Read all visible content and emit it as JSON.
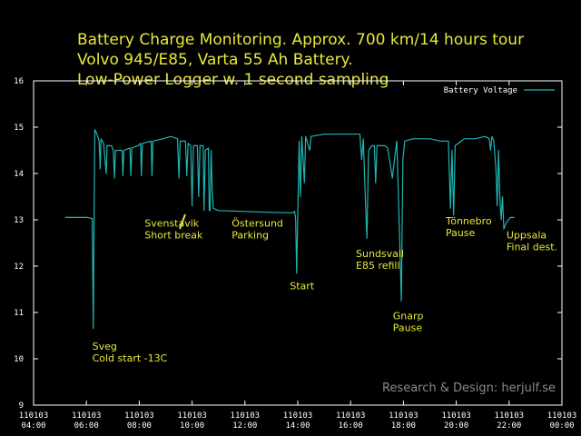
{
  "chart_data": {
    "type": "line",
    "title": [
      "Battery Charge Monitoring. Approx. 700 km/14 hours tour",
      "Volvo 945/E85, Varta 55 Ah Battery.",
      "Low-Power Logger w. 1 second sampling"
    ],
    "xlabel": "",
    "ylabel": "",
    "xlim": [
      4,
      24
    ],
    "ylim": [
      9,
      16
    ],
    "x_ticks": [
      {
        "date": "110103",
        "time": "04:00",
        "hour": 4
      },
      {
        "date": "110103",
        "time": "06:00",
        "hour": 6
      },
      {
        "date": "110103",
        "time": "08:00",
        "hour": 8
      },
      {
        "date": "110103",
        "time": "10:00",
        "hour": 10
      },
      {
        "date": "110103",
        "time": "12:00",
        "hour": 12
      },
      {
        "date": "110103",
        "time": "14:00",
        "hour": 14
      },
      {
        "date": "110103",
        "time": "16:00",
        "hour": 16
      },
      {
        "date": "110103",
        "time": "18:00",
        "hour": 18
      },
      {
        "date": "110103",
        "time": "20:00",
        "hour": 20
      },
      {
        "date": "110103",
        "time": "22:00",
        "hour": 22
      },
      {
        "date": "110103",
        "time": "00:00",
        "hour": 24
      }
    ],
    "y_ticks": [
      "9",
      "10",
      "11",
      "12",
      "13",
      "14",
      "15",
      "16"
    ],
    "grid": false,
    "legend": {
      "position": "top-right",
      "entries": [
        "Battery Voltage"
      ]
    },
    "series": [
      {
        "name": "Battery Voltage",
        "color": "#1fb5b5",
        "points": [
          [
            5.2,
            13.05
          ],
          [
            6.05,
            13.05
          ],
          [
            6.22,
            13.03
          ],
          [
            6.26,
            10.65
          ],
          [
            6.29,
            13.0
          ],
          [
            6.32,
            14.95
          ],
          [
            6.4,
            14.85
          ],
          [
            6.48,
            14.7
          ],
          [
            6.52,
            14.1
          ],
          [
            6.55,
            14.75
          ],
          [
            6.65,
            14.65
          ],
          [
            6.75,
            14.0
          ],
          [
            6.78,
            14.6
          ],
          [
            6.95,
            14.6
          ],
          [
            7.02,
            14.5
          ],
          [
            7.06,
            13.9
          ],
          [
            7.1,
            14.5
          ],
          [
            7.35,
            14.5
          ],
          [
            7.38,
            13.95
          ],
          [
            7.42,
            14.5
          ],
          [
            7.65,
            14.55
          ],
          [
            7.68,
            13.95
          ],
          [
            7.72,
            14.55
          ],
          [
            7.95,
            14.6
          ],
          [
            8.05,
            14.65
          ],
          [
            8.08,
            13.95
          ],
          [
            8.12,
            14.65
          ],
          [
            8.45,
            14.7
          ],
          [
            8.48,
            13.95
          ],
          [
            8.52,
            14.7
          ],
          [
            8.9,
            14.75
          ],
          [
            9.2,
            14.8
          ],
          [
            9.45,
            14.75
          ],
          [
            9.5,
            13.9
          ],
          [
            9.55,
            14.7
          ],
          [
            9.75,
            14.7
          ],
          [
            9.8,
            13.95
          ],
          [
            9.85,
            14.65
          ],
          [
            9.95,
            14.6
          ],
          [
            10.0,
            13.3
          ],
          [
            10.05,
            14.6
          ],
          [
            10.2,
            14.6
          ],
          [
            10.25,
            13.5
          ],
          [
            10.3,
            14.6
          ],
          [
            10.42,
            14.6
          ],
          [
            10.45,
            13.2
          ],
          [
            10.5,
            14.5
          ],
          [
            10.62,
            14.55
          ],
          [
            10.65,
            13.2
          ],
          [
            10.68,
            13.2
          ],
          [
            10.72,
            14.5
          ],
          [
            10.76,
            13.7
          ],
          [
            10.8,
            13.25
          ],
          [
            11.0,
            13.2
          ],
          [
            12.0,
            13.18
          ],
          [
            12.5,
            13.17
          ],
          [
            13.0,
            13.16
          ],
          [
            13.8,
            13.15
          ],
          [
            13.88,
            13.18
          ],
          [
            13.92,
            13.0
          ],
          [
            13.96,
            11.85
          ],
          [
            14.0,
            13.1
          ],
          [
            14.05,
            14.7
          ],
          [
            14.1,
            13.5
          ],
          [
            14.15,
            14.8
          ],
          [
            14.25,
            13.8
          ],
          [
            14.3,
            14.8
          ],
          [
            14.45,
            14.5
          ],
          [
            14.5,
            14.8
          ],
          [
            15.0,
            14.85
          ],
          [
            15.5,
            14.85
          ],
          [
            16.0,
            14.85
          ],
          [
            16.35,
            14.85
          ],
          [
            16.42,
            14.3
          ],
          [
            16.48,
            14.75
          ],
          [
            16.55,
            13.6
          ],
          [
            16.62,
            12.6
          ],
          [
            16.68,
            14.5
          ],
          [
            16.8,
            14.6
          ],
          [
            16.9,
            14.6
          ],
          [
            16.95,
            13.8
          ],
          [
            17.0,
            14.6
          ],
          [
            17.3,
            14.6
          ],
          [
            17.4,
            14.55
          ],
          [
            17.5,
            14.2
          ],
          [
            17.58,
            13.9
          ],
          [
            17.66,
            14.3
          ],
          [
            17.75,
            14.7
          ],
          [
            17.85,
            12.75
          ],
          [
            17.92,
            11.25
          ],
          [
            17.98,
            14.3
          ],
          [
            18.05,
            14.7
          ],
          [
            18.35,
            14.75
          ],
          [
            18.6,
            14.75
          ],
          [
            19.0,
            14.75
          ],
          [
            19.4,
            14.7
          ],
          [
            19.7,
            14.7
          ],
          [
            19.78,
            13.25
          ],
          [
            19.84,
            14.5
          ],
          [
            19.9,
            13.1
          ],
          [
            19.96,
            14.6
          ],
          [
            20.3,
            14.75
          ],
          [
            20.7,
            14.75
          ],
          [
            21.1,
            14.8
          ],
          [
            21.25,
            14.75
          ],
          [
            21.3,
            14.5
          ],
          [
            21.35,
            14.8
          ],
          [
            21.42,
            14.7
          ],
          [
            21.5,
            14.1
          ],
          [
            21.55,
            13.3
          ],
          [
            21.6,
            14.5
          ],
          [
            21.65,
            13.5
          ],
          [
            21.7,
            13.0
          ],
          [
            21.75,
            13.5
          ],
          [
            21.8,
            12.8
          ],
          [
            21.9,
            12.95
          ],
          [
            22.05,
            13.05
          ],
          [
            22.2,
            13.05
          ]
        ]
      }
    ],
    "annotations": [
      {
        "lines": [
          "Sveg",
          "Cold start -13C"
        ],
        "x": 6.22,
        "y": 10.2
      },
      {
        "lines": [
          "Svenstavik",
          "Short break"
        ],
        "x": 8.2,
        "y": 12.85
      },
      {
        "lines": [
          "Östersund",
          "Parking"
        ],
        "x": 11.5,
        "y": 12.85
      },
      {
        "lines": [
          "Start"
        ],
        "x": 13.7,
        "y": 11.5
      },
      {
        "lines": [
          "Sundsvall",
          "E85 refill"
        ],
        "x": 16.2,
        "y": 12.2
      },
      {
        "lines": [
          "Gnarp",
          "Pause"
        ],
        "x": 17.6,
        "y": 10.85
      },
      {
        "lines": [
          "Tönnebro",
          "Pause"
        ],
        "x": 19.6,
        "y": 12.9
      },
      {
        "lines": [
          "Uppsala",
          "Final dest."
        ],
        "x": 21.9,
        "y": 12.6
      }
    ]
  },
  "credit": "Research & Design: herjulf.se",
  "colors": {
    "background": "#000000",
    "axis": "#ffffff",
    "title": "#e8e83a",
    "annotation": "#e8e83a",
    "series": "#1fb5b5",
    "credit": "#8a8a8a"
  }
}
